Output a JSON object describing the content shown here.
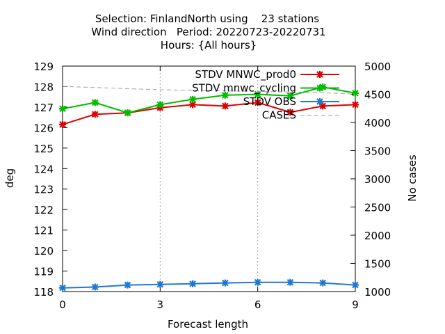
{
  "chart_data": {
    "type": "line",
    "title_lines": [
      "Selection: FinlandNorth using    23 stations",
      "Wind direction   Period: 20220723-20220731",
      "Hours: {All hours}"
    ],
    "xlabel": "Forecast length",
    "ylabel": "deg",
    "y2label": "No cases",
    "xlim": [
      0,
      9
    ],
    "ylim": [
      118,
      129
    ],
    "y2lim": [
      1000,
      5000
    ],
    "xticks": [
      "0",
      "3",
      "6",
      "9"
    ],
    "yticks": [
      "118",
      "119",
      "120",
      "121",
      "122",
      "123",
      "124",
      "125",
      "126",
      "127",
      "128",
      "129"
    ],
    "y2ticks": [
      "1000",
      "1500",
      "2000",
      "2500",
      "3000",
      "3500",
      "4000",
      "4500",
      "5000"
    ],
    "grid": true,
    "legend_position": "top-right",
    "x": [
      0,
      1,
      2,
      3,
      4,
      5,
      6,
      7,
      8,
      9
    ],
    "series": [
      {
        "name": "STDV MNWC_prod0",
        "axis": "left",
        "color": "#dd0000",
        "marker": "x",
        "values": [
          126.15,
          126.65,
          126.72,
          126.97,
          127.12,
          127.05,
          127.22,
          126.75,
          127.05,
          127.12
        ]
      },
      {
        "name": "STDV mnwc_cycling",
        "axis": "left",
        "color": "#00bb00",
        "marker": "x",
        "values": [
          126.92,
          127.22,
          126.72,
          127.12,
          127.38,
          127.58,
          127.62,
          127.55,
          127.98,
          127.68
        ]
      },
      {
        "name": "STDV OBS",
        "axis": "left",
        "color": "#1f78d0",
        "marker": "x",
        "values": [
          118.18,
          118.22,
          118.32,
          118.35,
          118.38,
          118.42,
          118.45,
          118.45,
          118.42,
          118.32
        ]
      },
      {
        "name": "CASES",
        "axis": "right",
        "color": "#a0a0a0",
        "marker": "none",
        "dashed": true,
        "values": [
          4640,
          4620,
          4600,
          4580,
          4570,
          4560,
          4550,
          4540,
          4530,
          4500
        ]
      }
    ]
  }
}
